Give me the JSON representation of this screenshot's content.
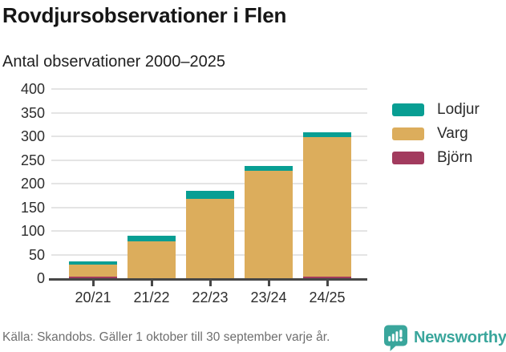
{
  "title": "Rovdjursobservationer i Flen",
  "subtitle": "Antal observationer 2000–2025",
  "source": "Källa: Skandobs. Gäller 1 oktober till 30 september varje år.",
  "brand": {
    "name": "Newsworthy",
    "color": "#3aa69c",
    "logo_icon": "speech-bubble-bar-chart-icon"
  },
  "colors": {
    "lodjur": "#089e93",
    "varg": "#dcad5c",
    "bjorn": "#a23b5e",
    "grid": "#e4e4e4",
    "axis": "#474747",
    "text": "#2d2d2d"
  },
  "chart_data": {
    "type": "bar",
    "stacked": true,
    "title": "Rovdjursobservationer i Flen",
    "subtitle": "Antal observationer 2000–2025",
    "categories": [
      "20/21",
      "21/22",
      "22/23",
      "23/24",
      "24/25"
    ],
    "series": [
      {
        "name": "Lodjur",
        "color": "#089e93",
        "values": [
          7,
          11,
          17,
          11,
          10
        ]
      },
      {
        "name": "Varg",
        "color": "#dcad5c",
        "values": [
          25,
          78,
          168,
          227,
          296
        ]
      },
      {
        "name": "Björn",
        "color": "#a23b5e",
        "values": [
          3,
          0,
          0,
          0,
          3
        ]
      }
    ],
    "stack_order_bottom_to_top": [
      "Björn",
      "Varg",
      "Lodjur"
    ],
    "totals": [
      35,
      89,
      185,
      238,
      309
    ],
    "xlabel": "",
    "ylabel": "",
    "ylim": [
      0,
      400
    ],
    "yticks": [
      0,
      50,
      100,
      150,
      200,
      250,
      300,
      350,
      400
    ],
    "grid": true,
    "legend_position": "right"
  }
}
